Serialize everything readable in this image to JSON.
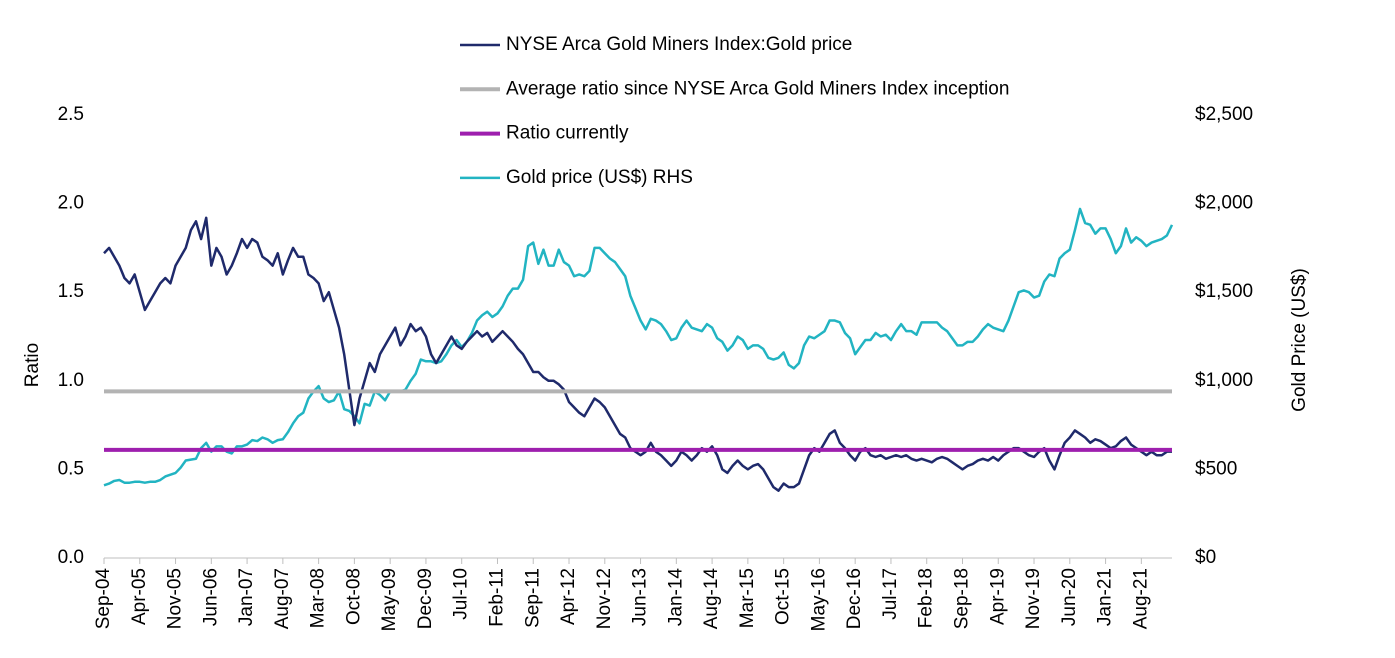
{
  "chart_data": {
    "type": "line",
    "y_label": "Ratio",
    "y2_label": "Gold Price (US$)",
    "categories": [
      "Sep-04",
      null,
      null,
      null,
      null,
      null,
      null,
      "Apr-05",
      null,
      null,
      null,
      null,
      null,
      null,
      "Nov-05",
      null,
      null,
      null,
      null,
      null,
      null,
      "Jun-06",
      null,
      null,
      null,
      null,
      null,
      null,
      "Jan-07",
      null,
      null,
      null,
      null,
      null,
      null,
      "Aug-07",
      null,
      null,
      null,
      null,
      null,
      null,
      "Mar-08",
      null,
      null,
      null,
      null,
      null,
      null,
      "Oct-08",
      null,
      null,
      null,
      null,
      null,
      null,
      "May-09",
      null,
      null,
      null,
      null,
      null,
      null,
      "Dec-09",
      null,
      null,
      null,
      null,
      null,
      null,
      "Jul-10",
      null,
      null,
      null,
      null,
      null,
      null,
      "Feb-11",
      null,
      null,
      null,
      null,
      null,
      null,
      "Sep-11",
      null,
      null,
      null,
      null,
      null,
      null,
      "Apr-12",
      null,
      null,
      null,
      null,
      null,
      null,
      "Nov-12",
      null,
      null,
      null,
      null,
      null,
      null,
      "Jun-13",
      null,
      null,
      null,
      null,
      null,
      null,
      "Jan-14",
      null,
      null,
      null,
      null,
      null,
      null,
      "Aug-14",
      null,
      null,
      null,
      null,
      null,
      null,
      "Mar-15",
      null,
      null,
      null,
      null,
      null,
      null,
      "Oct-15",
      null,
      null,
      null,
      null,
      null,
      null,
      "May-16",
      null,
      null,
      null,
      null,
      null,
      null,
      "Dec-16",
      null,
      null,
      null,
      null,
      null,
      null,
      "Jul-17",
      null,
      null,
      null,
      null,
      null,
      null,
      "Feb-18",
      null,
      null,
      null,
      null,
      null,
      null,
      "Sep-18",
      null,
      null,
      null,
      null,
      null,
      null,
      "Apr-19",
      null,
      null,
      null,
      null,
      null,
      null,
      "Nov-19",
      null,
      null,
      null,
      null,
      null,
      null,
      "Jun-20",
      null,
      null,
      null,
      null,
      null,
      null,
      "Jan-21",
      null,
      null,
      null,
      null,
      null,
      null,
      "Aug-21",
      null,
      null,
      null,
      null,
      null,
      null
    ],
    "series": [
      {
        "name": "NYSE Arca Gold Miners Index:Gold price",
        "color": "#1f2a6b",
        "axis": "y",
        "values": [
          1.72,
          1.75,
          1.7,
          1.65,
          1.58,
          1.55,
          1.6,
          1.5,
          1.4,
          1.45,
          1.5,
          1.55,
          1.58,
          1.55,
          1.65,
          1.7,
          1.75,
          1.85,
          1.9,
          1.8,
          1.92,
          1.65,
          1.75,
          1.7,
          1.6,
          1.65,
          1.72,
          1.8,
          1.75,
          1.8,
          1.78,
          1.7,
          1.68,
          1.65,
          1.72,
          1.6,
          1.68,
          1.75,
          1.7,
          1.7,
          1.6,
          1.58,
          1.55,
          1.45,
          1.5,
          1.4,
          1.3,
          1.15,
          0.95,
          0.75,
          0.9,
          1.0,
          1.1,
          1.05,
          1.15,
          1.2,
          1.25,
          1.3,
          1.2,
          1.25,
          1.32,
          1.28,
          1.3,
          1.25,
          1.15,
          1.1,
          1.15,
          1.2,
          1.25,
          1.2,
          1.18,
          1.22,
          1.25,
          1.28,
          1.25,
          1.27,
          1.22,
          1.25,
          1.28,
          1.25,
          1.22,
          1.18,
          1.15,
          1.1,
          1.05,
          1.05,
          1.02,
          1.0,
          1.0,
          0.98,
          0.95,
          0.88,
          0.85,
          0.82,
          0.8,
          0.85,
          0.9,
          0.88,
          0.85,
          0.8,
          0.75,
          0.7,
          0.68,
          0.62,
          0.6,
          0.58,
          0.6,
          0.65,
          0.6,
          0.58,
          0.55,
          0.52,
          0.55,
          0.6,
          0.58,
          0.55,
          0.58,
          0.62,
          0.6,
          0.63,
          0.58,
          0.5,
          0.48,
          0.52,
          0.55,
          0.52,
          0.5,
          0.52,
          0.53,
          0.5,
          0.45,
          0.4,
          0.38,
          0.42,
          0.4,
          0.4,
          0.42,
          0.5,
          0.58,
          0.62,
          0.6,
          0.65,
          0.7,
          0.72,
          0.65,
          0.62,
          0.58,
          0.55,
          0.6,
          0.62,
          0.58,
          0.57,
          0.58,
          0.56,
          0.57,
          0.58,
          0.57,
          0.58,
          0.56,
          0.55,
          0.56,
          0.55,
          0.54,
          0.56,
          0.57,
          0.56,
          0.54,
          0.52,
          0.5,
          0.52,
          0.53,
          0.55,
          0.56,
          0.55,
          0.57,
          0.55,
          0.58,
          0.6,
          0.62,
          0.62,
          0.6,
          0.58,
          0.57,
          0.6,
          0.62,
          0.55,
          0.5,
          0.58,
          0.65,
          0.68,
          0.72,
          0.7,
          0.68,
          0.65,
          0.67,
          0.66,
          0.64,
          0.62,
          0.63,
          0.66,
          0.68,
          0.64,
          0.62,
          0.6,
          0.58,
          0.6,
          0.58,
          0.58,
          0.6,
          0.6
        ]
      },
      {
        "name": "Average ratio since NYSE Arca Gold Miners Index inception",
        "color": "#b3b3b3",
        "axis": "y",
        "kind": "hline",
        "value": 0.94
      },
      {
        "name": "Ratio currently",
        "color": "#9e1fae",
        "axis": "y",
        "kind": "hline",
        "value": 0.61
      },
      {
        "name": "Gold price (US$) RHS",
        "color": "#22b4c2",
        "axis": "y2",
        "values": [
          410,
          420,
          435,
          440,
          425,
          425,
          430,
          430,
          425,
          430,
          430,
          440,
          460,
          470,
          480,
          510,
          550,
          555,
          560,
          620,
          650,
          600,
          630,
          630,
          600,
          590,
          630,
          630,
          640,
          665,
          660,
          680,
          670,
          650,
          665,
          670,
          710,
          760,
          800,
          820,
          900,
          940,
          970,
          900,
          880,
          890,
          940,
          840,
          830,
          800,
          760,
          870,
          860,
          940,
          920,
          890,
          940,
          940,
          940,
          950,
          1000,
          1040,
          1120,
          1110,
          1110,
          1100,
          1110,
          1150,
          1200,
          1230,
          1190,
          1220,
          1270,
          1340,
          1370,
          1390,
          1360,
          1380,
          1420,
          1480,
          1520,
          1520,
          1570,
          1760,
          1780,
          1660,
          1740,
          1650,
          1650,
          1740,
          1670,
          1650,
          1590,
          1600,
          1590,
          1620,
          1750,
          1750,
          1720,
          1690,
          1670,
          1630,
          1590,
          1480,
          1410,
          1340,
          1290,
          1350,
          1340,
          1320,
          1280,
          1230,
          1240,
          1300,
          1340,
          1300,
          1290,
          1280,
          1320,
          1300,
          1240,
          1220,
          1170,
          1200,
          1250,
          1230,
          1180,
          1200,
          1200,
          1180,
          1130,
          1120,
          1130,
          1160,
          1090,
          1070,
          1100,
          1200,
          1250,
          1240,
          1260,
          1280,
          1340,
          1340,
          1330,
          1270,
          1240,
          1150,
          1190,
          1230,
          1230,
          1270,
          1250,
          1260,
          1230,
          1280,
          1320,
          1280,
          1280,
          1260,
          1330,
          1330,
          1330,
          1330,
          1300,
          1280,
          1240,
          1200,
          1200,
          1220,
          1220,
          1250,
          1290,
          1320,
          1300,
          1290,
          1280,
          1340,
          1420,
          1500,
          1510,
          1500,
          1470,
          1480,
          1560,
          1600,
          1590,
          1690,
          1720,
          1740,
          1850,
          1970,
          1890,
          1880,
          1830,
          1860,
          1860,
          1800,
          1720,
          1760,
          1860,
          1780,
          1810,
          1790,
          1760,
          1780,
          1790,
          1800,
          1820,
          1880
        ]
      }
    ],
    "ylim": [
      0,
      2.5
    ],
    "yticks": [
      {
        "value": 0,
        "label": "0.0"
      },
      0.5,
      {
        "value": 1,
        "label": "1.0"
      },
      1.5,
      {
        "value": 2,
        "label": "2.0"
      },
      2.5
    ],
    "y2lim": [
      0,
      2500
    ],
    "y2ticks": [
      {
        "value": 0,
        "label": "$0"
      },
      {
        "value": 500,
        "label": "$500"
      },
      {
        "value": 1000,
        "label": "$1,000"
      },
      {
        "value": 1500,
        "label": "$1,500"
      },
      {
        "value": 2000,
        "label": "$2,000"
      },
      {
        "value": 2500,
        "label": "$2,500"
      }
    ],
    "grid": false,
    "legend": "top"
  }
}
